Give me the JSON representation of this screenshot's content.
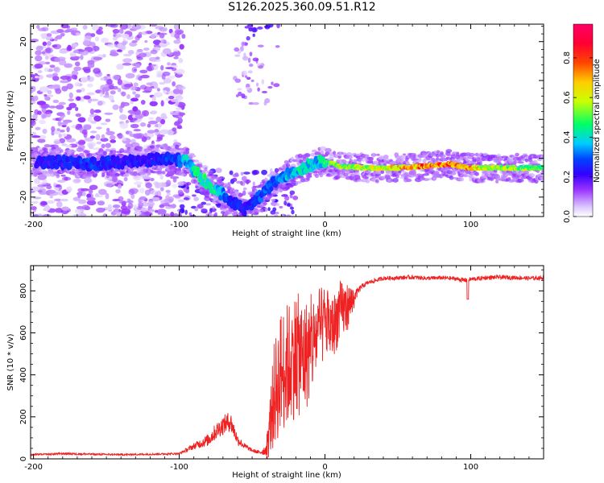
{
  "title": "S126.2025.360.09.51.R12",
  "chart_data": [
    {
      "type": "heatmap",
      "xlabel": "Height of straight line (km)",
      "ylabel": "Frequency (Hz)",
      "xlim": [
        -202,
        150
      ],
      "ylim": [
        -25,
        24.5
      ],
      "xticks": [
        -200,
        -100,
        0,
        100
      ],
      "xtick_labels": [
        "-200",
        "-100",
        "0",
        "100"
      ],
      "yticks": [
        -20,
        -10,
        0,
        10,
        20
      ],
      "ytick_labels": [
        "-20",
        "-10",
        "0",
        "10",
        "20"
      ],
      "colorbar": {
        "label": "Normalized spectral amplitude",
        "range": [
          0,
          0.97
        ],
        "ticks": [
          0,
          0.2,
          0.4,
          0.6,
          0.8
        ],
        "tick_labels": [
          "0.0",
          "0.2",
          "0.4",
          "0.6",
          "0.8"
        ],
        "colormap": [
          "#ffffff",
          "#cc99ff",
          "#6600ff",
          "#0000ff",
          "#00ccff",
          "#00ff66",
          "#ccff00",
          "#ffcc00",
          "#ff3300",
          "#ff0066"
        ]
      },
      "ridge": {
        "x": [
          -180,
          -160,
          -140,
          -120,
          -105,
          -95,
          -85,
          -75,
          -65,
          -55,
          -45,
          -35,
          -25,
          -15,
          -5,
          0,
          10,
          30,
          50,
          70,
          85,
          100,
          120,
          150
        ],
        "y": [
          -11,
          -11.5,
          -11,
          -10.5,
          -10,
          -11,
          -15,
          -18,
          -21,
          -23,
          -20,
          -16,
          -14,
          -12.5,
          -11,
          -11,
          -12,
          -12.5,
          -12.5,
          -12,
          -11.5,
          -12.5,
          -12.5,
          -12.5
        ],
        "amplitude": [
          0.25,
          0.3,
          0.25,
          0.25,
          0.3,
          0.4,
          0.5,
          0.45,
          0.3,
          0.25,
          0.3,
          0.35,
          0.4,
          0.45,
          0.4,
          0.5,
          0.6,
          0.65,
          0.7,
          0.85,
          0.8,
          0.75,
          0.6,
          0.55
        ]
      }
    },
    {
      "type": "line",
      "xlabel": "Height of straight line (km)",
      "ylabel": "SNR (10 * v/v)",
      "xlim": [
        -202,
        150
      ],
      "ylim": [
        0,
        920
      ],
      "xticks": [
        -200,
        -100,
        0,
        100
      ],
      "xtick_labels": [
        "-200",
        "-100",
        "0",
        "100"
      ],
      "yticks": [
        0,
        200,
        400,
        600,
        800
      ],
      "ytick_labels": [
        "0",
        "200",
        "400",
        "600",
        "800"
      ],
      "color": "#ee2222",
      "series": [
        {
          "x": [
            -202,
            -190,
            -180,
            -160,
            -140,
            -120,
            -100,
            -90,
            -80,
            -75,
            -70,
            -65,
            -60,
            -55,
            -50,
            -45,
            -40,
            -35,
            -30,
            -25,
            -20,
            -15,
            -10,
            -5,
            0,
            5,
            10,
            15,
            20,
            25,
            30,
            40,
            50,
            60,
            70,
            80,
            90,
            95,
            100,
            110,
            120,
            130,
            140,
            150
          ],
          "y": [
            20,
            22,
            25,
            22,
            20,
            22,
            25,
            60,
            90,
            130,
            160,
            180,
            90,
            60,
            40,
            30,
            45,
            300,
            420,
            450,
            500,
            480,
            520,
            600,
            650,
            620,
            700,
            720,
            770,
            820,
            840,
            860,
            862,
            865,
            860,
            862,
            858,
            850,
            855,
            862,
            865,
            863,
            860,
            862
          ],
          "noise": [
            8,
            8,
            10,
            10,
            8,
            8,
            10,
            30,
            60,
            80,
            90,
            100,
            50,
            30,
            15,
            20,
            60,
            250,
            300,
            300,
            300,
            280,
            250,
            200,
            180,
            150,
            150,
            120,
            60,
            25,
            20,
            20,
            20,
            20,
            20,
            20,
            20,
            25,
            20,
            20,
            20,
            20,
            20,
            20
          ]
        }
      ]
    }
  ]
}
